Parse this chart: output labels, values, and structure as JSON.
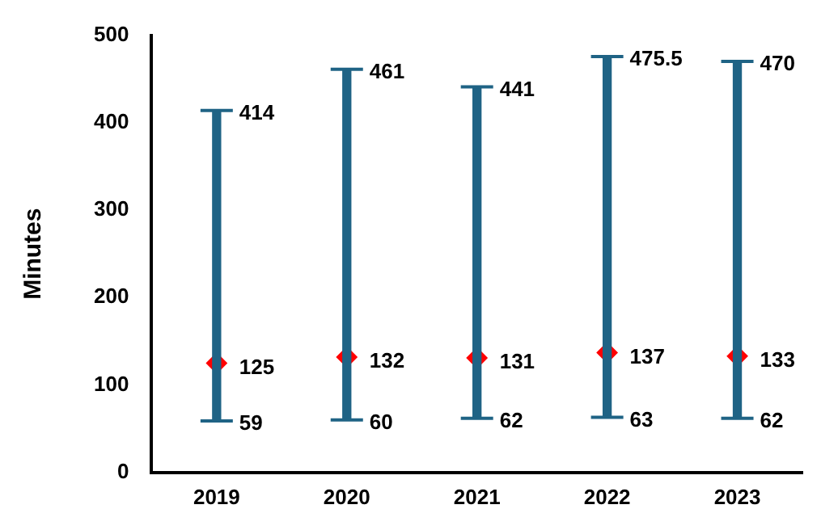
{
  "chart_data": {
    "type": "bar",
    "ylabel": "Minutes",
    "categories": [
      "2019",
      "2020",
      "2021",
      "2022",
      "2023"
    ],
    "series": [
      {
        "color": "#1f6385",
        "base": [
          59,
          60,
          62,
          63,
          62
        ],
        "values": [
          355,
          401,
          379,
          412.5,
          408
        ]
      },
      {
        "type": "scatter",
        "color": "#ff0000",
        "values": [
          125,
          132,
          131,
          137,
          133
        ],
        "value_labels": [
          "125",
          "132",
          "131",
          "137",
          "133"
        ]
      }
    ],
    "marker": "diamond",
    "ylim": [
      0,
      500
    ],
    "yticks": [
      0,
      100,
      200,
      300,
      400,
      500
    ],
    "grid": false,
    "legend": false,
    "annotations": [
      {
        "text": "414",
        "x": "2019",
        "y": 414
      },
      {
        "text": "59",
        "x": "2019",
        "y": 59
      },
      {
        "text": "461",
        "x": "2020",
        "y": 461
      },
      {
        "text": "60",
        "x": "2020",
        "y": 60
      },
      {
        "text": "441",
        "x": "2021",
        "y": 441
      },
      {
        "text": "62",
        "x": "2021",
        "y": 62
      },
      {
        "text": "475.5",
        "x": "2022",
        "y": 475.5
      },
      {
        "text": "63",
        "x": "2022",
        "y": 63
      },
      {
        "text": "470",
        "x": "2023",
        "y": 470
      },
      {
        "text": "62",
        "x": "2023",
        "y": 62
      }
    ]
  }
}
